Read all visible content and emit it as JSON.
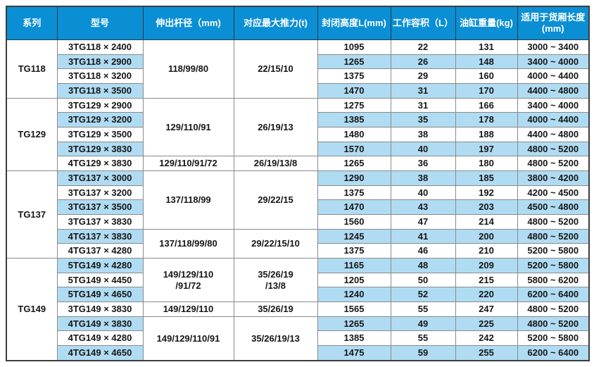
{
  "colors": {
    "header_bg": "#0a8fd4",
    "header_text": "#ffffff",
    "stripe_bg": "#b0dcf3",
    "row_bg": "#ffffff",
    "grid_line": "#8a8a8a",
    "outer_border": "#3d3d3d",
    "body_text": "#161616"
  },
  "table": {
    "headers": [
      "系列",
      "型号",
      "伸出杆径（mm)",
      "对应最大推力(t)",
      "封闭高度L(mm)",
      "工作容积（L）",
      "油缸重量(kg)",
      "适用于货厢长度\n(mm)"
    ],
    "groups": [
      {
        "series": "TG118",
        "spans": [
          {
            "rod": "118/99/80",
            "thrust": "22/15/10",
            "rows": 4
          }
        ],
        "rows": [
          {
            "model": "3TG118 × 2400",
            "height": "1095",
            "volume": "22",
            "weight": "131",
            "range": "3000 ~ 3400"
          },
          {
            "model": "3TG118 × 2900",
            "height": "1265",
            "volume": "26",
            "weight": "148",
            "range": "3400 ~ 4000"
          },
          {
            "model": "3TG118 × 3200",
            "height": "1375",
            "volume": "29",
            "weight": "160",
            "range": "4000 ~ 4400"
          },
          {
            "model": "3TG118 × 3500",
            "height": "1470",
            "volume": "31",
            "weight": "170",
            "range": "4400 ~ 4800"
          }
        ]
      },
      {
        "series": "TG129",
        "spans": [
          {
            "rod": "129/110/91",
            "thrust": "26/19/13",
            "rows": 4
          },
          {
            "rod": "129/110/91/72",
            "thrust": "26/19/13/8",
            "rows": 1
          }
        ],
        "rows": [
          {
            "model": "3TG129 × 2900",
            "height": "1275",
            "volume": "31",
            "weight": "166",
            "range": "3400 ~ 4000"
          },
          {
            "model": "3TG129 × 3200",
            "height": "1385",
            "volume": "35",
            "weight": "178",
            "range": "4000 ~ 4400"
          },
          {
            "model": "3TG129 × 3500",
            "height": "1480",
            "volume": "38",
            "weight": "188",
            "range": "4400 ~ 4800"
          },
          {
            "model": "3TG129 × 3830",
            "height": "1570",
            "volume": "40",
            "weight": "197",
            "range": "4800 ~ 5200"
          },
          {
            "model": "4TG129 × 3830",
            "height": "1265",
            "volume": "36",
            "weight": "180",
            "range": "4800 ~ 5200"
          }
        ]
      },
      {
        "series": "TG137",
        "spans": [
          {
            "rod": "137/118/99",
            "thrust": "29/22/15",
            "rows": 4
          },
          {
            "rod": "137/118/99/80",
            "thrust": "29/22/15/10",
            "rows": 2
          }
        ],
        "rows": [
          {
            "model": "3TG137 × 3000",
            "height": "1290",
            "volume": "38",
            "weight": "185",
            "range": "3800 ~ 4200"
          },
          {
            "model": "3TG137 × 3200",
            "height": "1375",
            "volume": "40",
            "weight": "192",
            "range": "4200 ~ 4500"
          },
          {
            "model": "3TG137 × 3500",
            "height": "1470",
            "volume": "43",
            "weight": "203",
            "range": "4500 ~ 4800"
          },
          {
            "model": "3TG137 × 3830",
            "height": "1560",
            "volume": "47",
            "weight": "214",
            "range": "4800 ~ 5200"
          },
          {
            "model": "4TG137 × 3830",
            "height": "1245",
            "volume": "41",
            "weight": "200",
            "range": "4800 ~ 5200"
          },
          {
            "model": "4TG137 × 4280",
            "height": "1375",
            "volume": "46",
            "weight": "210",
            "range": "5200 ~ 5800"
          }
        ]
      },
      {
        "series": "TG149",
        "spans": [
          {
            "rod": "149/129/110\n/91/72",
            "thrust": "35/26/19\n/13/8",
            "rows": 3
          },
          {
            "rod": "149/129/110",
            "thrust": "35/26/19",
            "rows": 1
          },
          {
            "rod": "149/129/110/91",
            "thrust": "35/26/19/13",
            "rows": 3
          }
        ],
        "rows": [
          {
            "model": "5TG149 × 4280",
            "height": "1165",
            "volume": "48",
            "weight": "209",
            "range": "5200 ~ 5800"
          },
          {
            "model": "5TG149 × 4450",
            "height": "1205",
            "volume": "50",
            "weight": "215",
            "range": "5800 ~ 6200"
          },
          {
            "model": "5TG149 × 4650",
            "height": "1240",
            "volume": "52",
            "weight": "220",
            "range": "6200 ~ 6400"
          },
          {
            "model": "3TG149 × 3830",
            "height": "1565",
            "volume": "55",
            "weight": "247",
            "range": "4800 ~ 5200"
          },
          {
            "model": "4TG149 × 3830",
            "height": "1265",
            "volume": "49",
            "weight": "225",
            "range": "4800 ~ 5200"
          },
          {
            "model": "4TG149 × 4280",
            "height": "1385",
            "volume": "55",
            "weight": "242",
            "range": "5200 ~ 5800"
          },
          {
            "model": "4TG149 × 4650",
            "height": "1475",
            "volume": "59",
            "weight": "255",
            "range": "6200 ~ 6400"
          }
        ]
      }
    ]
  }
}
